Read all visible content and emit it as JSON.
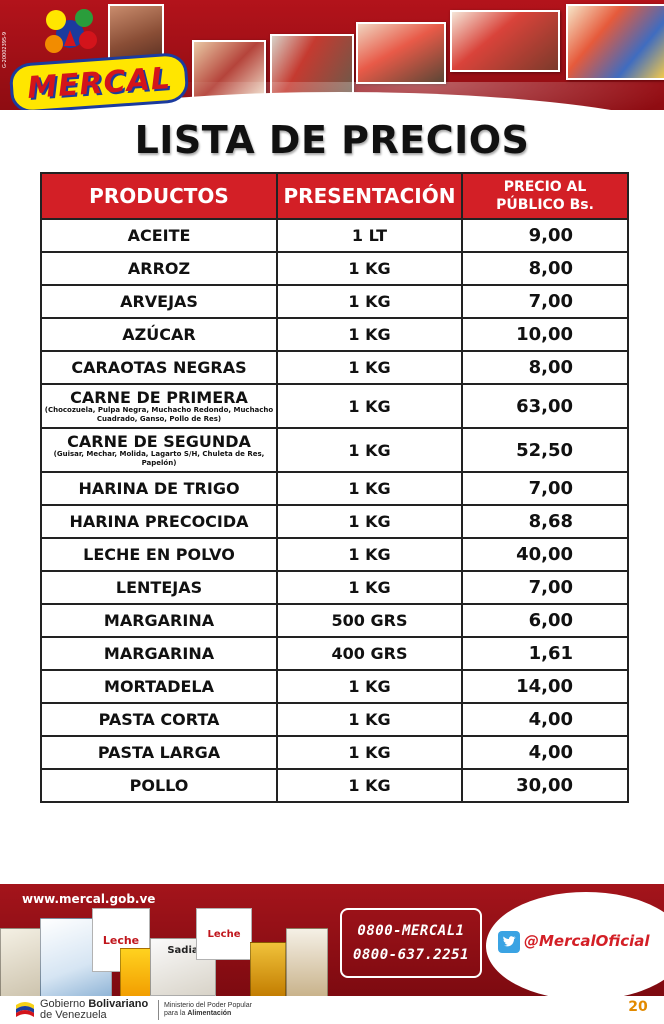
{
  "header": {
    "vertical_code": "G-20002395-9",
    "logo_text": "MERCAL"
  },
  "title": "LISTA DE PRECIOS",
  "table": {
    "headers": {
      "product": "PRODUCTOS",
      "presentation": "PRESENTACIÓN",
      "price_line1": "PRECIO AL",
      "price_line2": "PÚBLICO Bs."
    },
    "rows": [
      {
        "name": "ACEITE",
        "detail": "",
        "presentation": "1 LT",
        "price": "9,00"
      },
      {
        "name": "ARROZ",
        "detail": "",
        "presentation": "1 KG",
        "price": "8,00"
      },
      {
        "name": "ARVEJAS",
        "detail": "",
        "presentation": "1 KG",
        "price": "7,00"
      },
      {
        "name": "AZÚCAR",
        "detail": "",
        "presentation": "1 KG",
        "price": "10,00"
      },
      {
        "name": "CARAOTAS NEGRAS",
        "detail": "",
        "presentation": "1 KG",
        "price": "8,00"
      },
      {
        "name": "CARNE DE PRIMERA",
        "detail": "(Chocozuela, Pulpa Negra, Muchacho Redondo, Muchacho Cuadrado, Ganso, Pollo de Res)",
        "presentation": "1 KG",
        "price": "63,00"
      },
      {
        "name": "CARNE DE SEGUNDA",
        "detail": "(Guisar, Mechar, Molida, Lagarto S/H, Chuleta de Res, Papelón)",
        "presentation": "1 KG",
        "price": "52,50"
      },
      {
        "name": "HARINA DE TRIGO",
        "detail": "",
        "presentation": "1 KG",
        "price": "7,00"
      },
      {
        "name": "HARINA PRECOCIDA",
        "detail": "",
        "presentation": "1 KG",
        "price": "8,68"
      },
      {
        "name": "LECHE EN POLVO",
        "detail": "",
        "presentation": "1 KG",
        "price": "40,00"
      },
      {
        "name": "LENTEJAS",
        "detail": "",
        "presentation": "1 KG",
        "price": "7,00"
      },
      {
        "name": "MARGARINA",
        "detail": "",
        "presentation": "500 GRS",
        "price": "6,00"
      },
      {
        "name": "MARGARINA",
        "detail": "",
        "presentation": "400 GRS",
        "price": "1,61"
      },
      {
        "name": "MORTADELA",
        "detail": "",
        "presentation": "1 KG",
        "price": "14,00"
      },
      {
        "name": "PASTA CORTA",
        "detail": "",
        "presentation": "1 KG",
        "price": "4,00"
      },
      {
        "name": "PASTA LARGA",
        "detail": "",
        "presentation": "1 KG",
        "price": "4,00"
      },
      {
        "name": "POLLO",
        "detail": "",
        "presentation": "1 KG",
        "price": "30,00"
      }
    ]
  },
  "footer": {
    "website": "www.mercal.gob.ve",
    "phone1": "0800-MERCAL1",
    "phone2": "0800-637.2251",
    "twitter": "@MercalOficial",
    "package_label_1": "Leche",
    "package_label_2": "Sadia",
    "package_label_3": "Leche"
  },
  "bottom": {
    "gov_line1_pre": "Gobierno ",
    "gov_line1_bold": "Bolivariano",
    "gov_line2": "de Venezuela",
    "ministry_line1": "Ministerio del Poder Popular",
    "ministry_line2_pre": "para la ",
    "ministry_line2_bold": "Alimentación",
    "anniversary": "20"
  },
  "colors": {
    "brand_red": "#d31f26",
    "dark_red": "#8e0c12",
    "logo_yellow": "#ffe600",
    "logo_blue": "#1b3b9e"
  },
  "icons": [
    "mercal-logo-icon",
    "twitter-bird-icon",
    "venezuela-flag-icon"
  ]
}
